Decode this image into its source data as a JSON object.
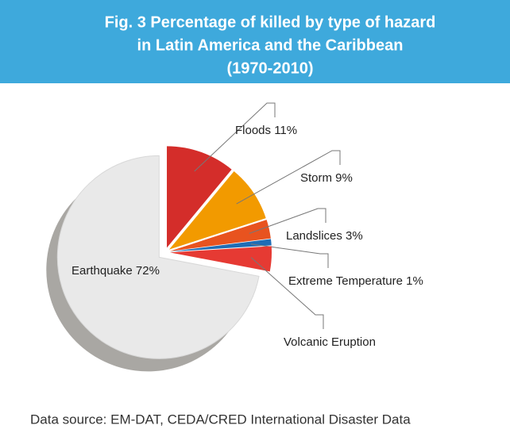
{
  "chart_data": {
    "type": "pie",
    "title": [
      "Fig. 3 Percentage of killed by type of hazard",
      "in Latin America and the Caribbean",
      "(1970-2010)"
    ],
    "labels": [
      "Floods 11%",
      "Storm 9%",
      "Landslices 3%",
      "Extreme Temperature 1%",
      "Volcanic Eruption",
      "Earthquake 72%"
    ],
    "values": [
      11,
      9,
      3,
      1,
      4,
      72
    ],
    "colors": [
      "#d42d2a",
      "#f29a00",
      "#e8531f",
      "#1f6db5",
      "#e63a33",
      "#e9e9e9"
    ],
    "source": "Data source:  EM-DAT, CEDA/CRED International Disaster Data"
  }
}
